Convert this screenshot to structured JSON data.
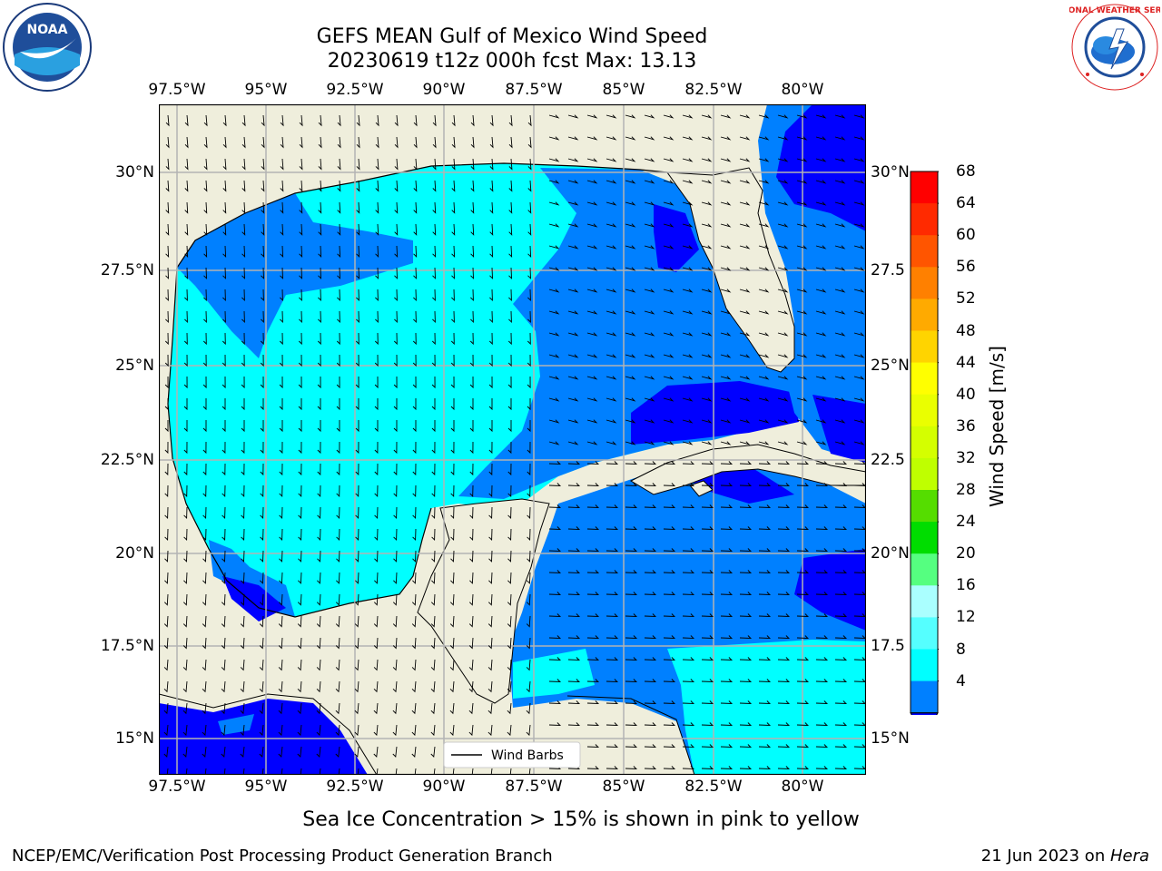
{
  "header": {
    "title_line1": "GEFS MEAN Gulf of Mexico Wind Speed",
    "title_line2": "20230619 t12z 000h fcst   Max: 13.13"
  },
  "logos": {
    "left": {
      "icon": "noaa-logo",
      "text": "NOAA"
    },
    "right": {
      "icon": "nws-logo",
      "text": "NATIONAL WEATHER SERVICE"
    }
  },
  "axes": {
    "lon_labels": [
      "97.5°W",
      "95°W",
      "92.5°W",
      "90°W",
      "87.5°W",
      "85°W",
      "82.5°W",
      "80°W"
    ],
    "lat_labels_left": [
      "30°N",
      "27.5°N",
      "25°N",
      "22.5°N",
      "20°N",
      "17.5°N",
      "15°N"
    ],
    "lat_labels_right": [
      "30°N",
      "27.5",
      "25°N",
      "22.5",
      "20°N",
      "17.5",
      "15°N"
    ]
  },
  "legend": {
    "label": "Wind Barbs"
  },
  "colorbar": {
    "label": "Wind Speed [m/s]",
    "ticks": [
      "68",
      "64",
      "60",
      "56",
      "52",
      "48",
      "44",
      "40",
      "36",
      "32",
      "28",
      "24",
      "20",
      "16",
      "12",
      "8",
      "4"
    ],
    "colors": [
      "#ff0000",
      "#ff2a00",
      "#ff5500",
      "#ff8000",
      "#ffaa00",
      "#ffd400",
      "#ffff00",
      "#eaff00",
      "#d4ff00",
      "#bfff00",
      "#55dd00",
      "#00dd00",
      "#55ff80",
      "#aaffff",
      "#55ffff",
      "#00ffff",
      "#0080ff"
    ],
    "under_color": "#0000ff"
  },
  "note": "Sea Ice Concentration > 15% is shown in pink to yellow",
  "footer": {
    "left": "NCEP/EMC/Verification Post Processing Product Generation Branch",
    "right_date": "21 Jun 2023 on ",
    "right_host": "Hera"
  },
  "map": {
    "land_color": "#efeedc",
    "grid_color": "#b3b3b3",
    "ocean_colors": {
      "4-8": "#0080ff",
      "8-12": "#00ffff",
      "12-16": "#55ffff",
      "under": "#0000ff"
    }
  }
}
